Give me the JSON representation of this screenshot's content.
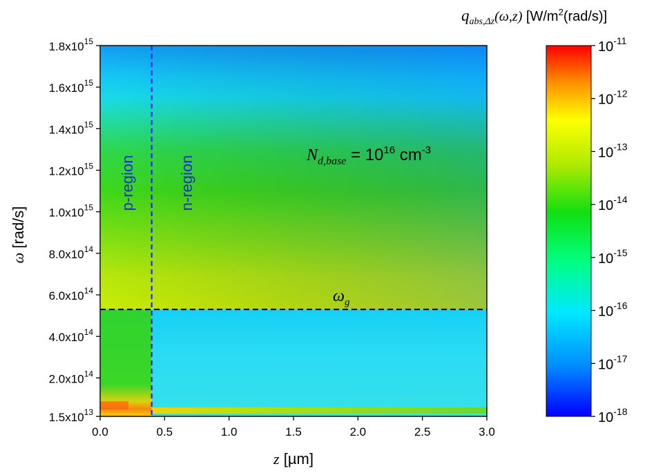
{
  "chart_data": {
    "type": "heatmap",
    "title": "",
    "xlabel": {
      "symbol": "z",
      "unit": "[µm]"
    },
    "ylabel": {
      "symbol": "ω",
      "unit": "[rad/s]"
    },
    "xlim": [
      0.0,
      3.0
    ],
    "ylim": [
      15000000000000.0,
      1800000000000000.0
    ],
    "x_ticks": [
      {
        "value": 0.0,
        "label": "0.0"
      },
      {
        "value": 0.5,
        "label": "0.5"
      },
      {
        "value": 1.0,
        "label": "1.0"
      },
      {
        "value": 1.5,
        "label": "1.5"
      },
      {
        "value": 2.0,
        "label": "2.0"
      },
      {
        "value": 2.5,
        "label": "2.5"
      },
      {
        "value": 3.0,
        "label": "3.0"
      }
    ],
    "y_ticks": [
      {
        "value": 15000000000000.0,
        "mant": "1.5x10",
        "exp": "13"
      },
      {
        "value": 200000000000000.0,
        "mant": "2.0x10",
        "exp": "14"
      },
      {
        "value": 400000000000000.0,
        "mant": "4.0x10",
        "exp": "14"
      },
      {
        "value": 600000000000000.0,
        "mant": "6.0x10",
        "exp": "14"
      },
      {
        "value": 800000000000000.0,
        "mant": "8.0x10",
        "exp": "14"
      },
      {
        "value": 1000000000000000.0,
        "mant": "1.0x10",
        "exp": "15"
      },
      {
        "value": 1200000000000000.0,
        "mant": "1.2x10",
        "exp": "15"
      },
      {
        "value": 1400000000000000.0,
        "mant": "1.4x10",
        "exp": "15"
      },
      {
        "value": 1600000000000000.0,
        "mant": "1.6x10",
        "exp": "15"
      },
      {
        "value": 1800000000000000.0,
        "mant": "1.8x10",
        "exp": "15"
      }
    ],
    "colorbar": {
      "title": {
        "symbol": "q",
        "sub": "abs,Δz",
        "args": "(ω,z)",
        "unit_a": "[W/m",
        "unit_sup": "2",
        "unit_b": "(rad/s)]"
      },
      "scale": "log",
      "range_exp": [
        -18,
        -11
      ],
      "colors_bottom_to_top": [
        "#0000ff",
        "#00c8ff",
        "#00ff80",
        "#00e000",
        "#c8e600",
        "#ffff00",
        "#ff9000",
        "#ff0000"
      ],
      "ticks": [
        {
          "base": "10",
          "exp": "-11"
        },
        {
          "base": "10",
          "exp": "-12"
        },
        {
          "base": "10",
          "exp": "-13"
        },
        {
          "base": "10",
          "exp": "-14"
        },
        {
          "base": "10",
          "exp": "-15"
        },
        {
          "base": "10",
          "exp": "-16"
        },
        {
          "base": "10",
          "exp": "-17"
        },
        {
          "base": "10",
          "exp": "-18"
        }
      ]
    },
    "junction_z": 0.4,
    "omega_g": 530000000000000.0,
    "annotations": {
      "p_region": "p-region",
      "n_region": "n-region",
      "omega_g": {
        "symbol": "ω",
        "sub": "g"
      },
      "doping": {
        "symbol": "N",
        "sub": "d,base",
        "eq": " = 10",
        "exp": "16",
        "unit": " cm",
        "unit_exp": "-3"
      }
    },
    "colors": {
      "junction_line": "#1f2bd6",
      "omega_g_line": "#000000",
      "region_text": "#1f2bd6"
    },
    "grid": false
  }
}
